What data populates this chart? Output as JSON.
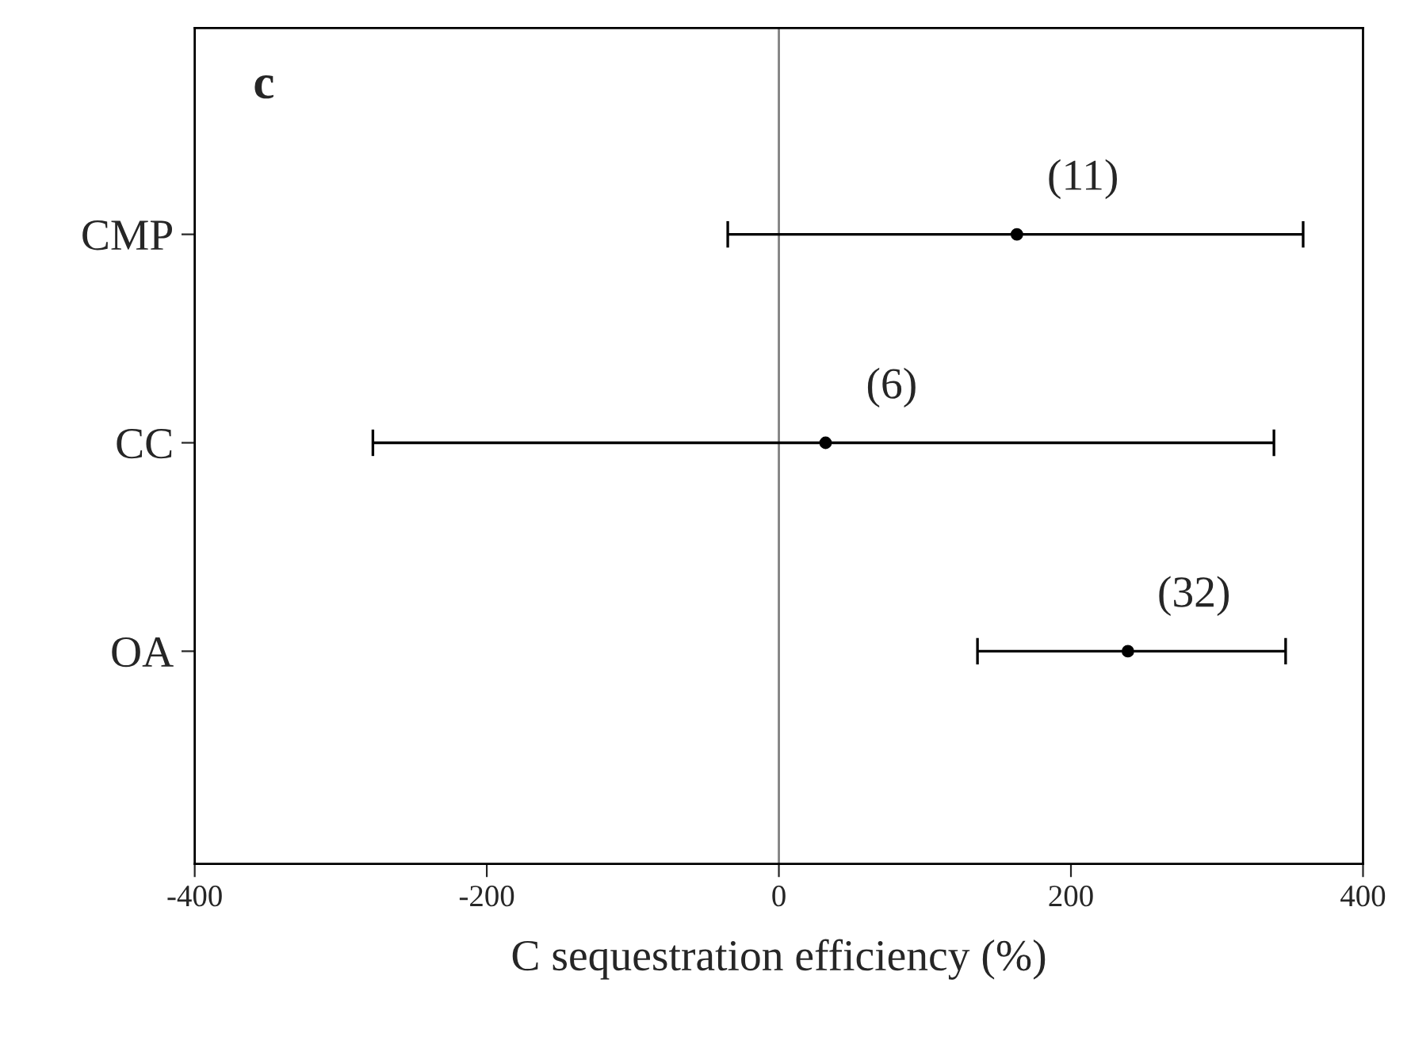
{
  "chart_data": {
    "type": "scatter",
    "orientation": "horizontal",
    "xlabel": "C sequestration efficiency (%)",
    "categories": [
      "CMP",
      "CC",
      "OA"
    ],
    "color": "#000000",
    "values": [
      163,
      32,
      239
    ],
    "errors": [
      [
        -35,
        359
      ],
      [
        -278,
        339
      ],
      [
        136,
        347
      ]
    ],
    "xlim": [
      -400,
      400
    ],
    "xticks": [
      -400,
      -200,
      0,
      200,
      400
    ],
    "ref_lines": [
      {
        "axis": "x",
        "value": 0,
        "color": "#808080"
      }
    ],
    "annotations": [
      "c",
      "(11)",
      "(6)",
      "(32)"
    ],
    "marker": "circle",
    "grid": false,
    "legend": false
  }
}
